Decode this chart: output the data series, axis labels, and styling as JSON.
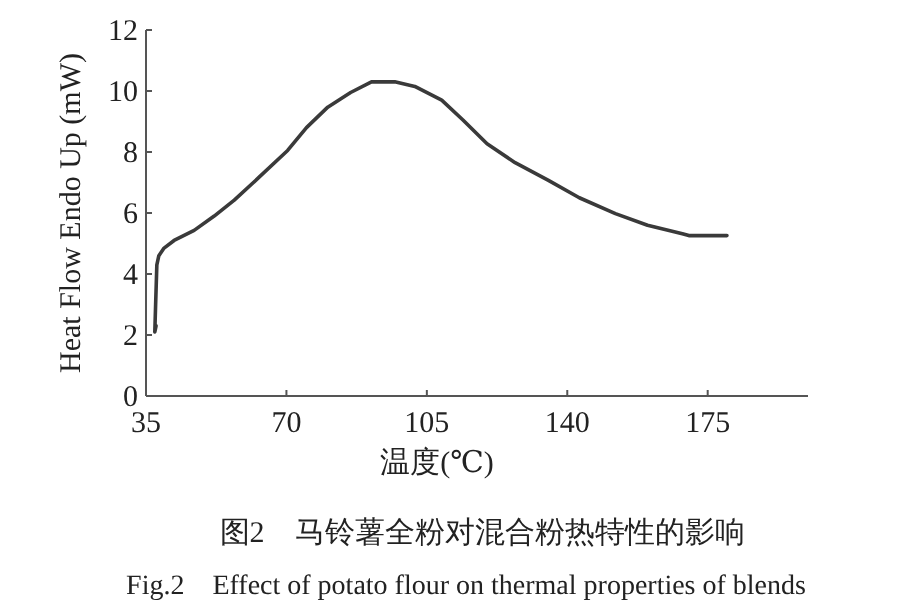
{
  "chart_data": {
    "type": "line",
    "title": "图2　马铃薯全粉对混合粉热特性的影响",
    "subtitle": "Fig.2　Effect of potato flour on thermal properties of blends",
    "xlabel": "温度(℃)",
    "ylabel": "Heat Flow Endo Up (mW)",
    "xlim": [
      35,
      200
    ],
    "xticks": [
      35,
      70,
      105,
      140,
      175
    ],
    "ylim": [
      0,
      12
    ],
    "yticks": [
      0,
      2,
      4,
      6,
      8,
      10,
      12
    ],
    "grid": false,
    "marker": "none",
    "line_style": "solid",
    "series": [
      {
        "color": "#3a3a3a",
        "x": [
          37.5,
          37.2,
          37.4,
          37.7,
          38.2,
          39.5,
          42,
          47,
          52,
          57,
          63,
          70.3,
          75,
          80.3,
          86,
          91.2,
          97,
          102,
          108.7,
          114,
          120,
          127,
          135.3,
          143,
          152,
          160,
          168.7,
          170.3,
          179.8
        ],
        "values": [
          2.3,
          2.1,
          3.0,
          4.3,
          4.6,
          4.85,
          5.1,
          5.43,
          5.9,
          6.42,
          7.15,
          8.05,
          8.8,
          9.47,
          9.95,
          10.3,
          10.3,
          10.15,
          9.7,
          9.05,
          8.27,
          7.65,
          7.07,
          6.5,
          5.98,
          5.6,
          5.32,
          5.26,
          5.26
        ]
      }
    ]
  }
}
